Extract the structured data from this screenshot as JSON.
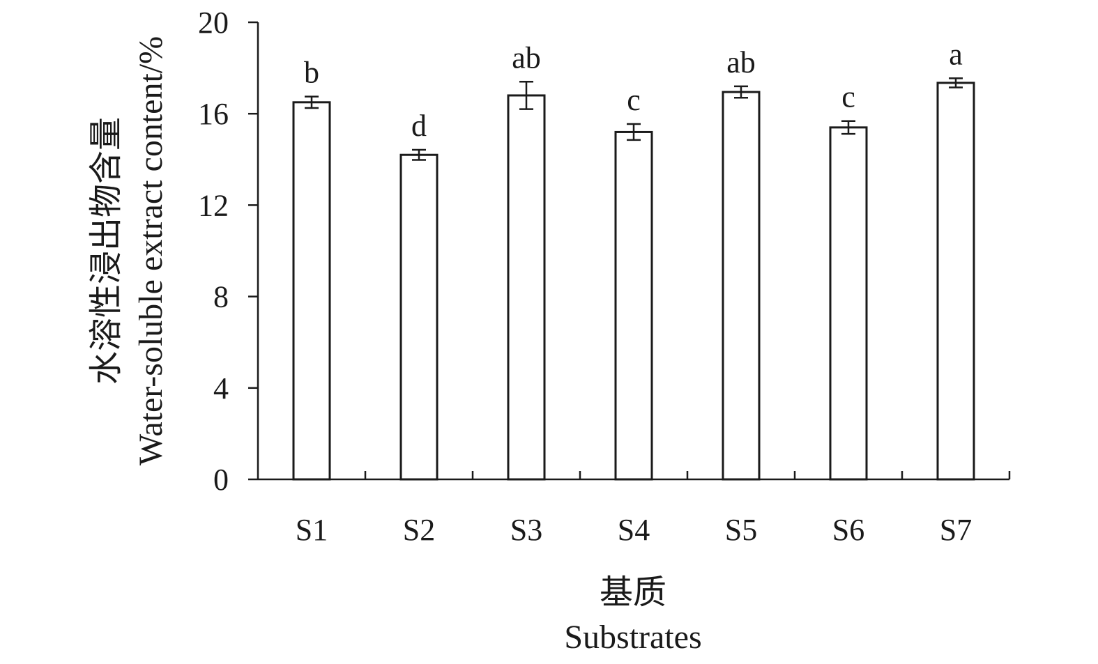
{
  "chart_data": {
    "type": "bar",
    "categories": [
      "S1",
      "S2",
      "S3",
      "S4",
      "S5",
      "S6",
      "S7"
    ],
    "values": [
      16.5,
      14.2,
      16.8,
      15.2,
      16.95,
      15.4,
      17.35
    ],
    "errors": [
      0.25,
      0.22,
      0.6,
      0.35,
      0.25,
      0.28,
      0.2
    ],
    "significance": [
      "b",
      "d",
      "ab",
      "c",
      "ab",
      "c",
      "a"
    ],
    "xlabel_cn": "基质",
    "xlabel_en": "Substrates",
    "ylabel_cn": "水溶性浸出物含量",
    "ylabel_en": "Water-soluble extract content/%",
    "ylim": [
      0,
      20
    ],
    "yticks": [
      0,
      4,
      8,
      12,
      16,
      20
    ],
    "grid": false,
    "legend": "none",
    "bar_color": "#ffffff",
    "line_color": "#1a1a1a"
  }
}
